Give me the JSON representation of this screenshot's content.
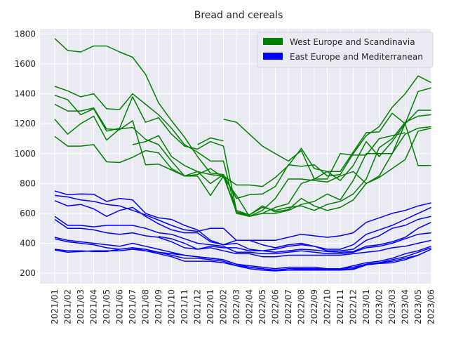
{
  "chart_data": {
    "type": "line",
    "title": "Bread and cereals",
    "xlabel": "",
    "ylabel": "",
    "ylim": [
      130,
      1835
    ],
    "yticks": [
      200,
      400,
      600,
      800,
      1000,
      1200,
      1400,
      1600,
      1800
    ],
    "grid": true,
    "legend_position": "top-right",
    "legend": [
      {
        "label": "West Europe and Scandinavia",
        "color": "#008000"
      },
      {
        "label": "East Europe and Mediterranean",
        "color": "#0000ff"
      }
    ],
    "categories": [
      "2021/01",
      "2021/02",
      "2021/03",
      "2021/04",
      "2021/05",
      "2021/06",
      "2021/07",
      "2021/08",
      "2021/09",
      "2021/10",
      "2021/11",
      "2021/12",
      "2022/01",
      "2022/02",
      "2022/03",
      "2022/04",
      "2022/05",
      "2022/06",
      "2022/07",
      "2022/08",
      "2022/09",
      "2022/10",
      "2022/11",
      "2022/12",
      "2023/01",
      "2023/02",
      "2023/03",
      "2023/04",
      "2023/05",
      "2023/06"
    ],
    "series": [
      {
        "name": "West Europe and Scandinavia",
        "color": "#008000",
        "values": [
          1770,
          1690,
          1680,
          1720,
          1720,
          1680,
          1645,
          1530,
          1340,
          1220,
          1110,
          980,
          870,
          860,
          610,
          590,
          650,
          610,
          625,
          700,
          650,
          620,
          640,
          690,
          800,
          840,
          900,
          960,
          1150,
          1170
        ]
      },
      {
        "name": "West Europe and Scandinavia",
        "color": "#008000",
        "values": [
          1450,
          1420,
          1380,
          1400,
          1300,
          1295,
          1400,
          1330,
          1260,
          1170,
          1060,
          1010,
          950,
          950,
          600,
          580,
          600,
          640,
          665,
          800,
          830,
          880,
          880,
          1010,
          1140,
          1145,
          1270,
          1200,
          1290,
          1290
        ]
      },
      {
        "name": "West Europe and Scandinavia",
        "color": "#008000",
        "values": [
          1390,
          1360,
          1260,
          1300,
          1150,
          1170,
          1380,
          1210,
          1240,
          1130,
          1050,
          1030,
          1080,
          1050,
          620,
          590,
          640,
          620,
          640,
          650,
          620,
          660,
          680,
          730,
          830,
          1040,
          1100,
          1210,
          1250,
          1260
        ]
      },
      {
        "name": "West Europe and Scandinavia",
        "color": "#008000",
        "values": [
          1330,
          1285,
          1285,
          1305,
          1165,
          1160,
          1220,
          925,
          930,
          890,
          850,
          880,
          800,
          860,
          700,
          725,
          730,
          780,
          925,
          915,
          925,
          850,
          860,
          1000,
          1120,
          1180,
          1310,
          1400,
          1520,
          1475
        ]
      },
      {
        "name": "West Europe and Scandinavia",
        "color": "#008000",
        "values": [
          1230,
          1130,
          1200,
          1250,
          1090,
          1165,
          1175,
          1095,
          1060,
          950,
          850,
          860,
          900,
          840,
          720,
          580,
          620,
          700,
          830,
          830,
          820,
          810,
          850,
          880,
          800,
          850,
          1000,
          1200,
          1415,
          1440
        ]
      },
      {
        "name": "West Europe and Scandinavia",
        "color": "#008000",
        "values": [
          1115,
          1050,
          1050,
          1060,
          945,
          940,
          975,
          1020,
          1005,
          900,
          850,
          850,
          720,
          850,
          610,
          580,
          600,
          600,
          620,
          660,
          680,
          730,
          690,
          820,
          1000,
          1000,
          1000,
          1130,
          1170,
          1180
        ]
      },
      {
        "name": "West Europe and Scandinavia",
        "color": "#008000",
        "values": [
          null,
          null,
          null,
          null,
          null,
          null,
          1060,
          1080,
          1120,
          980,
          920,
          880,
          860,
          850,
          790,
          790,
          780,
          840,
          920,
          1035,
          900,
          880,
          820,
          920,
          1080,
          980,
          1080,
          1200,
          920,
          920
        ]
      },
      {
        "name": "West Europe and Scandinavia",
        "color": "#008000",
        "values": [
          null,
          null,
          null,
          null,
          null,
          null,
          null,
          null,
          null,
          null,
          null,
          1060,
          1105,
          1085,
          null,
          null,
          null,
          null,
          null,
          null,
          null,
          null,
          null,
          null,
          null,
          null,
          null,
          null,
          null,
          null
        ]
      },
      {
        "name": "West Europe and Scandinavia",
        "color": "#008000",
        "values": [
          null,
          null,
          null,
          null,
          null,
          null,
          null,
          null,
          null,
          null,
          null,
          null,
          null,
          1230,
          1210,
          1130,
          1050,
          1000,
          950,
          1020,
          830,
          830,
          1000,
          990,
          990,
          1100,
          1120,
          1140,
          null,
          null
        ]
      },
      {
        "name": "East Europe and Mediterranean",
        "color": "#0000ff",
        "values": [
          750,
          725,
          730,
          728,
          680,
          700,
          690,
          600,
          570,
          560,
          520,
          490,
          420,
          390,
          420,
          420,
          420,
          420,
          440,
          460,
          450,
          440,
          450,
          470,
          540,
          570,
          600,
          620,
          650,
          670
        ]
      },
      {
        "name": "East Europe and Mediterranean",
        "color": "#0000ff",
        "values": [
          720,
          710,
          690,
          680,
          660,
          650,
          620,
          590,
          555,
          520,
          490,
          480,
          500,
          500,
          420,
          420,
          390,
          370,
          390,
          400,
          380,
          360,
          360,
          390,
          460,
          490,
          520,
          560,
          600,
          640
        ]
      },
      {
        "name": "East Europe and Mediterranean",
        "color": "#0000ff",
        "values": [
          685,
          650,
          660,
          630,
          580,
          620,
          640,
          580,
          530,
          490,
          470,
          470,
          410,
          390,
          400,
          360,
          350,
          360,
          380,
          390,
          380,
          350,
          350,
          360,
          420,
          450,
          500,
          520,
          560,
          580
        ]
      },
      {
        "name": "East Europe and Mediterranean",
        "color": "#0000ff",
        "values": [
          580,
          520,
          520,
          510,
          520,
          520,
          520,
          500,
          470,
          460,
          430,
          400,
          390,
          380,
          340,
          340,
          330,
          330,
          340,
          350,
          340,
          330,
          330,
          340,
          370,
          380,
          400,
          430,
          460,
          470
        ]
      },
      {
        "name": "East Europe and Mediterranean",
        "color": "#0000ff",
        "values": [
          560,
          500,
          500,
          490,
          470,
          460,
          470,
          450,
          440,
          410,
          370,
          360,
          370,
          350,
          330,
          330,
          310,
          310,
          320,
          320,
          320,
          320,
          320,
          330,
          340,
          350,
          370,
          380,
          400,
          420
        ]
      },
      {
        "name": "East Europe and Mediterranean",
        "color": "#0000ff",
        "values": [
          440,
          420,
          410,
          400,
          390,
          380,
          400,
          380,
          360,
          340,
          320,
          310,
          300,
          290,
          260,
          250,
          240,
          230,
          240,
          240,
          240,
          230,
          230,
          250,
          270,
          280,
          300,
          330,
          350,
          380
        ]
      },
      {
        "name": "East Europe and Mediterranean",
        "color": "#0000ff",
        "values": [
          430,
          410,
          400,
          390,
          370,
          360,
          370,
          350,
          340,
          320,
          300,
          300,
          290,
          280,
          250,
          240,
          230,
          220,
          230,
          230,
          230,
          230,
          230,
          240,
          260,
          270,
          290,
          310,
          340,
          370
        ]
      },
      {
        "name": "East Europe and Mediterranean",
        "color": "#0000ff",
        "values": [
          360,
          350,
          350,
          345,
          345,
          360,
          370,
          360,
          340,
          330,
          320,
          310,
          300,
          290,
          260,
          240,
          230,
          220,
          220,
          225,
          225,
          225,
          225,
          230,
          260,
          270,
          280,
          300,
          320,
          360
        ]
      },
      {
        "name": "East Europe and Mediterranean",
        "color": "#0000ff",
        "values": [
          355,
          340,
          345,
          350,
          350,
          350,
          360,
          350,
          330,
          310,
          280,
          280,
          280,
          270,
          250,
          230,
          220,
          215,
          220,
          220,
          220,
          220,
          220,
          225,
          255,
          265,
          270,
          290,
          320,
          360
        ]
      },
      {
        "name": "East Europe and Mediterranean",
        "color": "#0000ff",
        "values": [
          null,
          null,
          null,
          null,
          null,
          null,
          null,
          null,
          445,
          430,
          400,
          360,
          380,
          370,
          370,
          350,
          350,
          340,
          350,
          360,
          355,
          345,
          340,
          345,
          380,
          390,
          410,
          440,
          500,
          540
        ]
      }
    ]
  }
}
